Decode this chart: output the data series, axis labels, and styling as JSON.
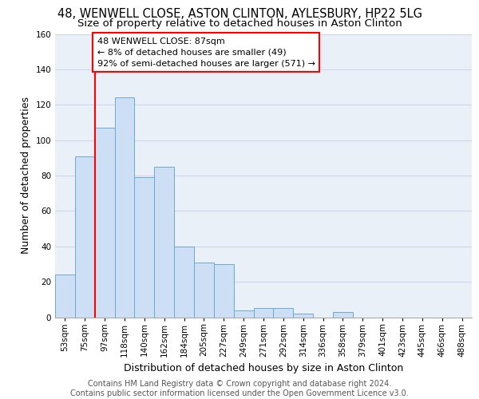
{
  "title_line1": "48, WENWELL CLOSE, ASTON CLINTON, AYLESBURY, HP22 5LG",
  "title_line2": "Size of property relative to detached houses in Aston Clinton",
  "xlabel": "Distribution of detached houses by size in Aston Clinton",
  "ylabel": "Number of detached properties",
  "categories": [
    "53sqm",
    "75sqm",
    "97sqm",
    "118sqm",
    "140sqm",
    "162sqm",
    "184sqm",
    "205sqm",
    "227sqm",
    "249sqm",
    "271sqm",
    "292sqm",
    "314sqm",
    "336sqm",
    "358sqm",
    "379sqm",
    "401sqm",
    "423sqm",
    "445sqm",
    "466sqm",
    "488sqm"
  ],
  "values": [
    24,
    91,
    107,
    124,
    79,
    85,
    40,
    31,
    30,
    4,
    5,
    5,
    2,
    0,
    3,
    0,
    0,
    0,
    0,
    0,
    0
  ],
  "bar_color": "#ccdff5",
  "bar_edge_color": "#6aaad4",
  "red_line_x": 1.5,
  "annotation_line1": "48 WENWELL CLOSE: 87sqm",
  "annotation_line2": "← 8% of detached houses are smaller (49)",
  "annotation_line3": "92% of semi-detached houses are larger (571) →",
  "red_line_color": "red",
  "ylim_max": 160,
  "yticks": [
    0,
    20,
    40,
    60,
    80,
    100,
    120,
    140,
    160
  ],
  "footer_text": "Contains HM Land Registry data © Crown copyright and database right 2024.\nContains public sector information licensed under the Open Government Licence v3.0.",
  "bg_color": "#eaf0f8",
  "grid_color": "#ccd8e8",
  "title_fontsize": 10.5,
  "subtitle_fontsize": 9.5,
  "ylabel_fontsize": 9,
  "xlabel_fontsize": 9,
  "tick_fontsize": 7.5,
  "annot_fontsize": 8,
  "footer_fontsize": 7
}
